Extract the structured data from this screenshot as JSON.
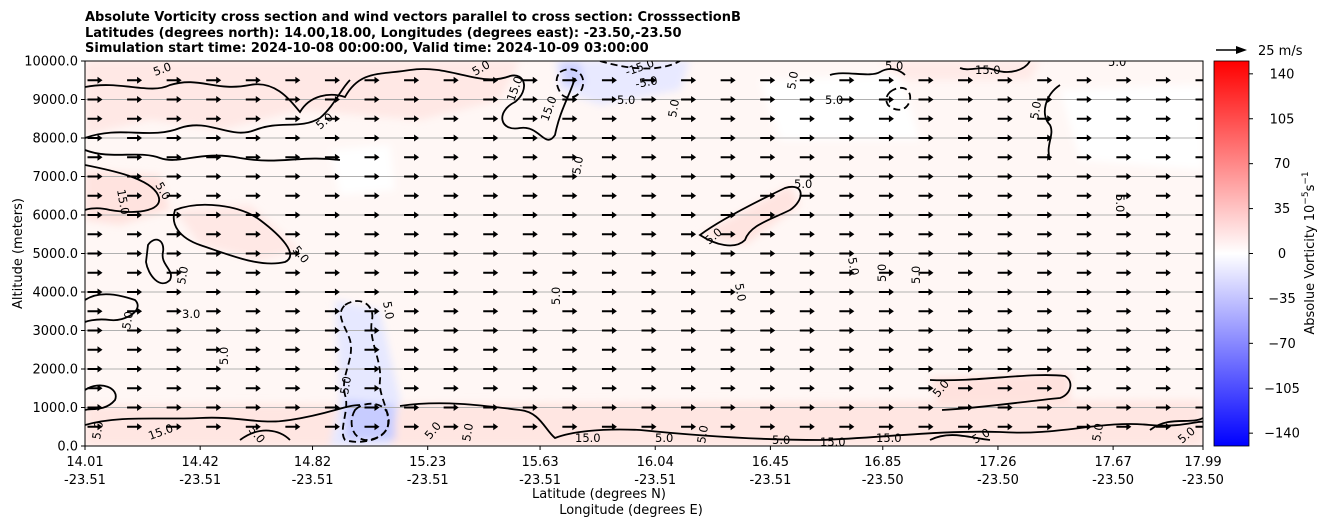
{
  "chart_data": {
    "type": "heatmap",
    "title_lines": [
      "Absolute Vorticity cross section and wind vectors parallel to cross section: CrosssectionB",
      "Latitudes (degrees north): 14.00,18.00, Longitudes (degrees east): -23.50,-23.50",
      "Simulation start time: 2024-10-08 00:00:00, Valid time: 2024-10-09 03:00:00"
    ],
    "xlabel_lines": [
      "Latitude (degrees N)",
      "Longitude (degrees E)"
    ],
    "ylabel": "Altitude (meters)",
    "x_ticks": [
      {
        "lat": "14.01",
        "lon": "-23.51"
      },
      {
        "lat": "14.42",
        "lon": "-23.51"
      },
      {
        "lat": "14.82",
        "lon": "-23.51"
      },
      {
        "lat": "15.23",
        "lon": "-23.51"
      },
      {
        "lat": "15.63",
        "lon": "-23.51"
      },
      {
        "lat": "16.04",
        "lon": "-23.51"
      },
      {
        "lat": "16.45",
        "lon": "-23.51"
      },
      {
        "lat": "16.85",
        "lon": "-23.50"
      },
      {
        "lat": "17.26",
        "lon": "-23.50"
      },
      {
        "lat": "17.67",
        "lon": "-23.50"
      },
      {
        "lat": "17.99",
        "lon": "-23.50"
      }
    ],
    "y_ticks": [
      "0.0",
      "1000.0",
      "2000.0",
      "3000.0",
      "4000.0",
      "5000.0",
      "6000.0",
      "7000.0",
      "8000.0",
      "9000.0",
      "10000.0"
    ],
    "xlim": [
      14.01,
      17.99
    ],
    "ylim": [
      0,
      10000
    ],
    "grid": "horizontal",
    "colorbar": {
      "label": "Absolue Vorticity 10",
      "label_exp": "−5",
      "label_unit": "s",
      "label_unit_exp": "−1",
      "ticks": [
        "140",
        "105",
        "70",
        "35",
        "0",
        "−35",
        "−70",
        "−105",
        "−140"
      ],
      "range": [
        -150,
        150
      ],
      "colors": {
        "negative": "#0000ff",
        "zero": "#ffffff",
        "positive": "#ff0000"
      }
    },
    "quiver_key": {
      "label": "25 m/s"
    },
    "contour_labels": [
      "5.0",
      "15.0",
      "-5.0",
      "-15.0",
      "3.0"
    ],
    "wind_direction": "right"
  }
}
